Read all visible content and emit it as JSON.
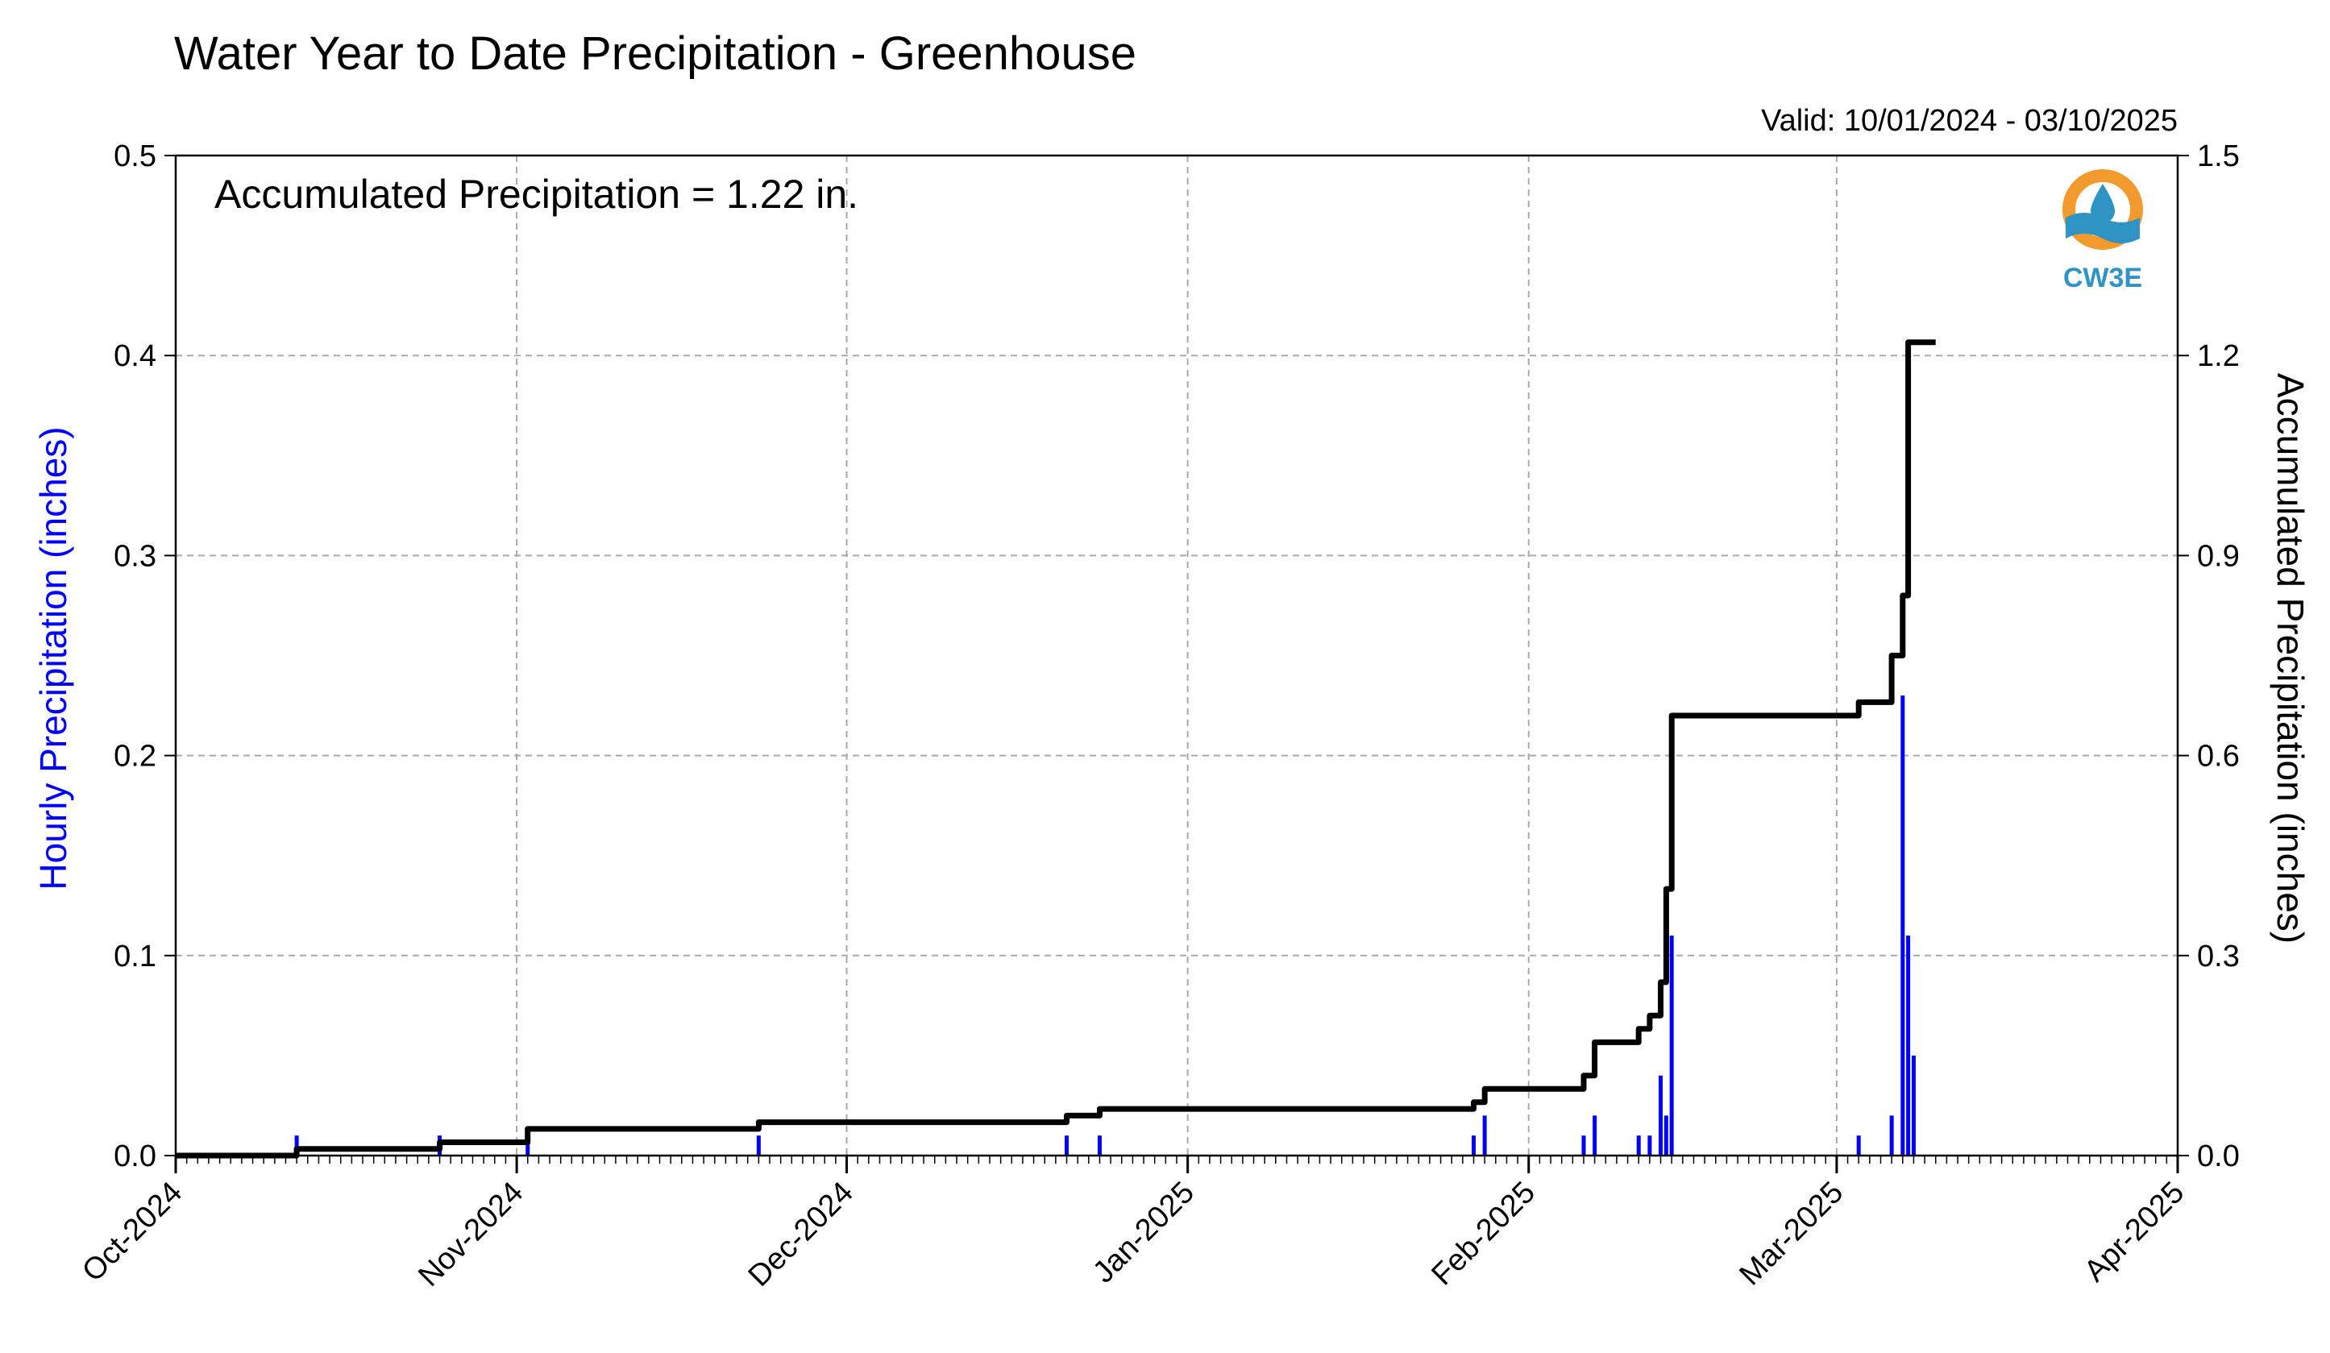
{
  "chart_data": {
    "type": "bar",
    "title": "Water Year to Date Precipitation - Greenhouse",
    "valid_label": "Valid: 10/01/2024 - 03/10/2025",
    "annotation": "Accumulated Precipitation = 1.22 in.",
    "logo_text": "CW3E",
    "xlabel": "",
    "x_ticks": [
      "Oct-2024",
      "Nov-2024",
      "Dec-2024",
      "Jan-2025",
      "Feb-2025",
      "Mar-2025",
      "Apr-2025"
    ],
    "x_tick_dates": [
      "2024-10-01",
      "2024-11-01",
      "2024-12-01",
      "2025-01-01",
      "2025-02-01",
      "2025-03-01",
      "2025-04-01"
    ],
    "xlim": [
      "2024-10-01",
      "2025-04-01"
    ],
    "grid": true,
    "ylabel_left": "Hourly Precipitation (inches)",
    "ylim_left": [
      0,
      0.5
    ],
    "yticks_left": [
      "0.0",
      "0.1",
      "0.2",
      "0.3",
      "0.4",
      "0.5"
    ],
    "ylabel_right": "Accumulated Precipitation (inches)",
    "ylim_right": [
      0,
      1.5
    ],
    "yticks_right": [
      "0.0",
      "0.3",
      "0.6",
      "0.9",
      "1.2",
      "1.5"
    ],
    "colors": {
      "hourly": "#0000ff",
      "accumulated": "#000000",
      "grid": "#aaaaaa",
      "logo_orange": "#f29a2e",
      "logo_blue": "#2f93c4"
    },
    "series": [
      {
        "type": "bar",
        "axis": "left",
        "x": [
          "2024-10-12",
          "2024-10-25",
          "2024-11-02",
          "2024-11-23",
          "2024-12-21",
          "2024-12-24",
          "2025-01-27",
          "2025-01-28",
          "2025-02-06",
          "2025-02-07",
          "2025-02-11",
          "2025-02-12",
          "2025-02-13",
          "2025-02-13T12:00",
          "2025-02-14",
          "2025-03-03",
          "2025-03-06",
          "2025-03-07",
          "2025-03-07T12:00",
          "2025-03-08"
        ],
        "values": [
          0.01,
          0.01,
          0.01,
          0.01,
          0.01,
          0.01,
          0.01,
          0.02,
          0.01,
          0.02,
          0.01,
          0.01,
          0.04,
          0.02,
          0.11,
          0.01,
          0.02,
          0.23,
          0.11,
          0.05
        ]
      },
      {
        "type": "step",
        "axis": "right",
        "x": [
          "2024-10-01",
          "2024-10-12",
          "2024-10-25",
          "2024-11-02",
          "2024-11-23",
          "2024-12-21",
          "2024-12-24",
          "2025-01-27",
          "2025-01-28",
          "2025-02-06",
          "2025-02-07",
          "2025-02-11",
          "2025-02-12",
          "2025-02-13",
          "2025-02-13T12:00",
          "2025-02-14",
          "2025-03-03",
          "2025-03-06",
          "2025-03-07",
          "2025-03-07T12:00",
          "2025-03-10"
        ],
        "values": [
          0.0,
          0.01,
          0.02,
          0.04,
          0.05,
          0.06,
          0.07,
          0.08,
          0.1,
          0.12,
          0.17,
          0.19,
          0.21,
          0.26,
          0.4,
          0.66,
          0.68,
          0.75,
          0.84,
          1.22,
          1.22
        ]
      }
    ]
  }
}
